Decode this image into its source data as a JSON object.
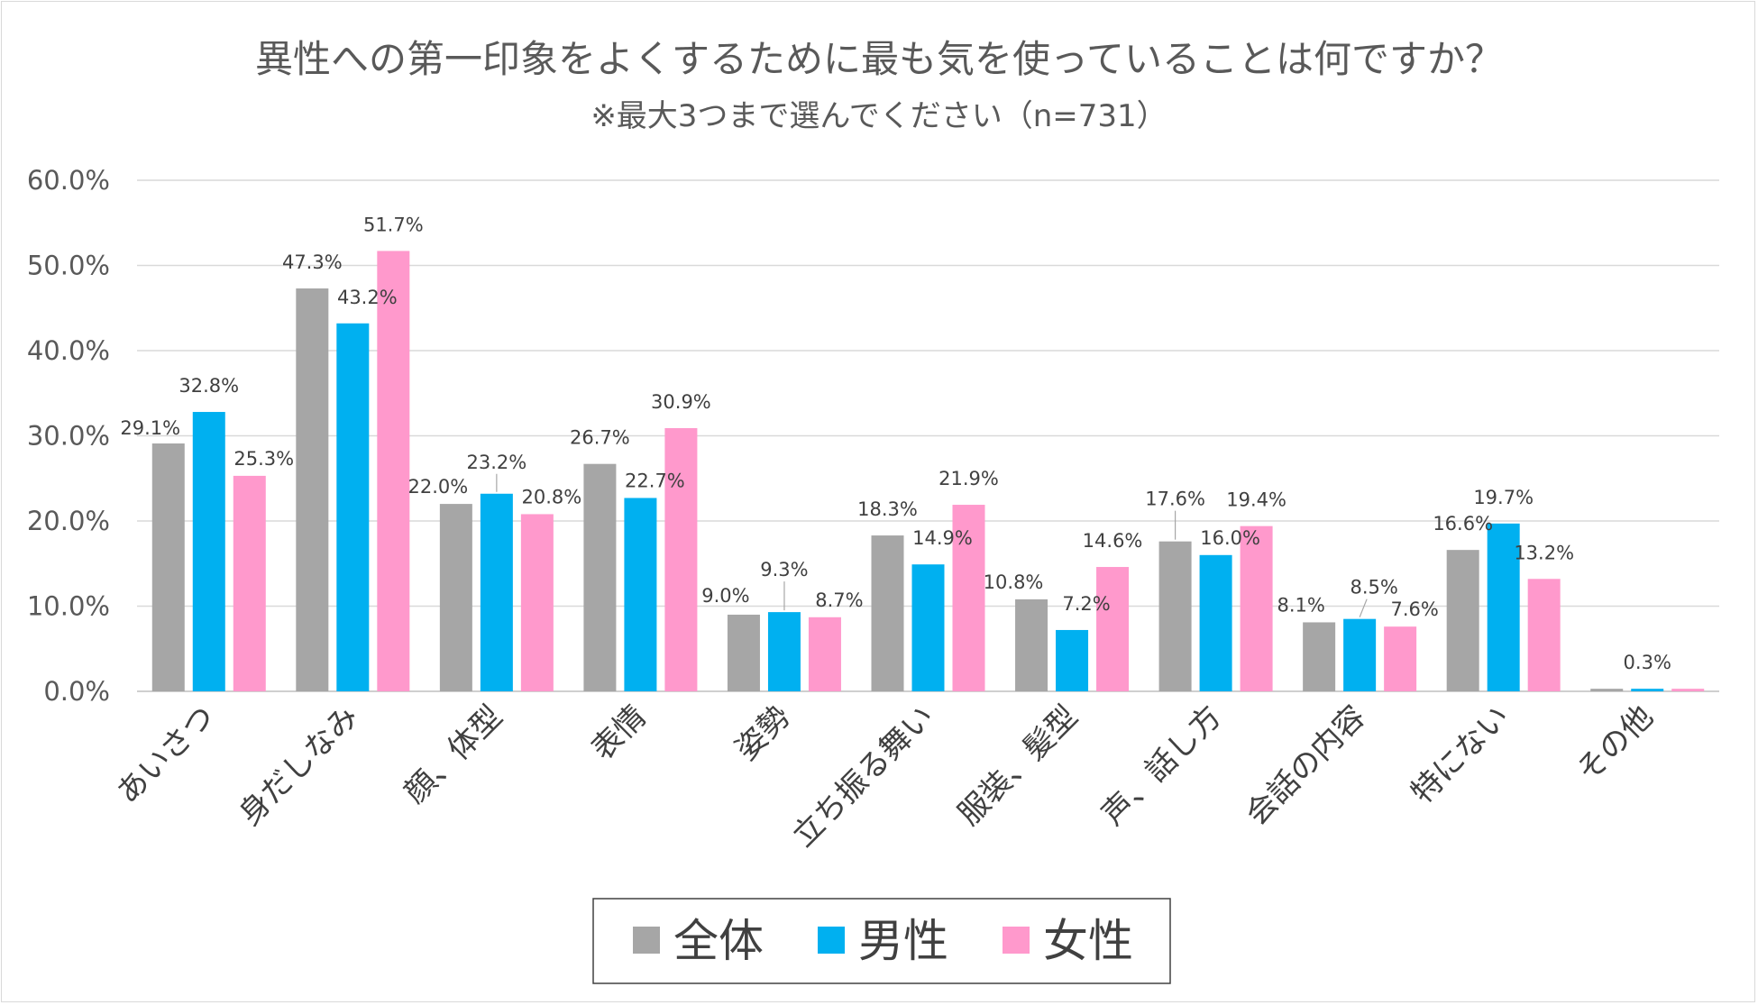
{
  "chart_data": {
    "type": "bar",
    "title": "異性への第一印象をよくするために最も気を使っていることは何ですか？",
    "subtitle": "※最大3つまで選んでください（n=731）",
    "categories": [
      "あいさつ",
      "身だしなみ",
      "顔、体型",
      "表情",
      "姿勢",
      "立ち振る舞い",
      "服装、髪型",
      "声、話し方",
      "会話の内容",
      "特にない",
      "その他"
    ],
    "series": [
      {
        "name": "全体",
        "color": "#a6a6a6",
        "values": [
          29.1,
          47.3,
          22.0,
          26.7,
          9.0,
          18.3,
          10.8,
          17.6,
          8.1,
          16.6,
          0.3
        ]
      },
      {
        "name": "男性",
        "color": "#00b0f0",
        "values": [
          32.8,
          43.2,
          23.2,
          22.7,
          9.3,
          14.9,
          7.2,
          16.0,
          8.5,
          19.7,
          0.3
        ]
      },
      {
        "name": "女性",
        "color": "#ff99cc",
        "values": [
          25.3,
          51.7,
          20.8,
          30.9,
          8.7,
          21.9,
          14.6,
          19.4,
          7.6,
          13.2,
          0.3
        ]
      }
    ],
    "data_labels": [
      [
        "29.1%",
        "47.3%",
        "22.0%",
        "26.7%",
        "9.0%",
        "18.3%",
        "10.8%",
        "17.6%",
        "8.1%",
        "16.6%",
        ""
      ],
      [
        "32.8%",
        "43.2%",
        "23.2%",
        "22.7%",
        "9.3%",
        "14.9%",
        "7.2%",
        "16.0%",
        "8.5%",
        "19.7%",
        "0.3%"
      ],
      [
        "25.3%",
        "51.7%",
        "20.8%",
        "30.9%",
        "8.7%",
        "21.9%",
        "14.6%",
        "19.4%",
        "7.6%",
        "13.2%",
        ""
      ]
    ],
    "yticks": [
      "0.0%",
      "10.0%",
      "20.0%",
      "30.0%",
      "40.0%",
      "50.0%",
      "60.0%"
    ],
    "ylim": [
      0,
      60
    ],
    "xlabel": "",
    "ylabel": "",
    "grid": true,
    "legend_position": "bottom-center"
  }
}
